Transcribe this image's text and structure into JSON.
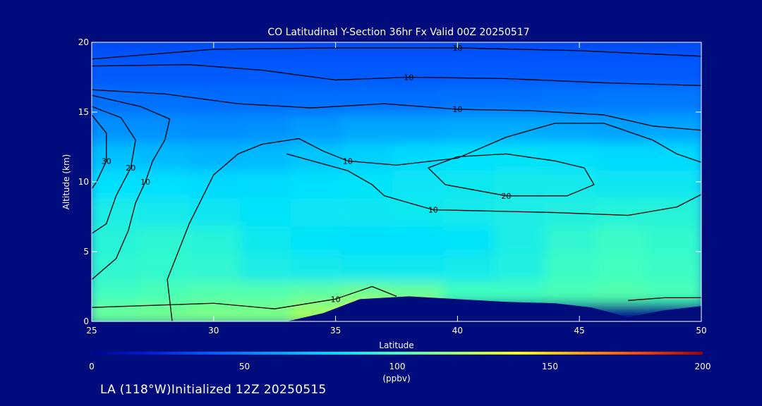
{
  "chart_data": {
    "type": "heatmap",
    "title": "CO Latitudinal Y-Section 36hr  Fx Valid 00Z 20250517",
    "xlabel": "Latitude",
    "ylabel": "Altitude (km)",
    "xlim": [
      25,
      50
    ],
    "ylim": [
      0,
      20
    ],
    "x_ticks": [
      "25",
      "30",
      "35",
      "40",
      "45",
      "50"
    ],
    "y_ticks": [
      "0",
      "5",
      "10",
      "15",
      "20"
    ],
    "colorbar": {
      "range": [
        0,
        200
      ],
      "ticks": [
        "0",
        "50",
        "100",
        "150",
        "200"
      ],
      "unit": "(ppbv)",
      "colors": [
        "#000090",
        "#0020e0",
        "#0060ff",
        "#00a0ff",
        "#00e0ff",
        "#40ffc0",
        "#a0ff60",
        "#ffff00",
        "#ffa000",
        "#ff4000",
        "#a00000"
      ]
    },
    "heat_rows": [
      {
        "alt": 19.5,
        "values": [
          35,
          35,
          35,
          35,
          35,
          35,
          35,
          35,
          35,
          35,
          35,
          35
        ]
      },
      {
        "alt": 17.5,
        "values": [
          38,
          38,
          38,
          38,
          38,
          38,
          38,
          38,
          38,
          38,
          38,
          38
        ]
      },
      {
        "alt": 15.5,
        "values": [
          45,
          45,
          44,
          44,
          45,
          45,
          45,
          46,
          46,
          47,
          48,
          48
        ]
      },
      {
        "alt": 13.5,
        "values": [
          55,
          55,
          54,
          55,
          58,
          62,
          62,
          63,
          63,
          62,
          60,
          62
        ]
      },
      {
        "alt": 11.5,
        "values": [
          70,
          68,
          66,
          68,
          72,
          75,
          78,
          80,
          82,
          80,
          78,
          78
        ]
      },
      {
        "alt": 9.5,
        "values": [
          80,
          80,
          78,
          78,
          80,
          82,
          83,
          85,
          86,
          86,
          84,
          84
        ]
      },
      {
        "alt": 7.5,
        "values": [
          88,
          86,
          84,
          82,
          83,
          84,
          85,
          86,
          88,
          90,
          92,
          92
        ]
      },
      {
        "alt": 5.5,
        "values": [
          92,
          94,
          92,
          85,
          82,
          80,
          80,
          82,
          88,
          95,
          98,
          96
        ]
      },
      {
        "alt": 3.5,
        "values": [
          95,
          96,
          95,
          88,
          86,
          85,
          85,
          86,
          90,
          98,
          100,
          98
        ]
      },
      {
        "alt": 1.5,
        "values": [
          100,
          102,
          104,
          104,
          106,
          110,
          108,
          100,
          100,
          102,
          104,
          102
        ]
      },
      {
        "alt": 0.5,
        "values": [
          108,
          110,
          112,
          112,
          120,
          130,
          125,
          0,
          0,
          0,
          0,
          0
        ]
      }
    ],
    "terrain": [
      [
        33.0,
        0
      ],
      [
        34.5,
        0.6
      ],
      [
        36.0,
        1.6
      ],
      [
        38.0,
        1.8
      ],
      [
        40.0,
        1.6
      ],
      [
        42.0,
        1.4
      ],
      [
        44.0,
        1.3
      ],
      [
        45.5,
        1.0
      ],
      [
        47.0,
        0.3
      ],
      [
        48.5,
        0.8
      ],
      [
        50.0,
        1.1
      ]
    ],
    "contours": [
      {
        "label": "10",
        "points": [
          [
            25,
            18.8
          ],
          [
            30,
            19.5
          ],
          [
            35,
            19.6
          ],
          [
            40,
            19.6
          ],
          [
            45,
            19.4
          ],
          [
            50,
            19.0
          ]
        ]
      },
      {
        "label": "10",
        "points": [
          [
            25,
            18.3
          ],
          [
            29,
            18.4
          ],
          [
            32,
            18.0
          ],
          [
            35,
            17.3
          ],
          [
            38,
            17.5
          ],
          [
            42,
            17.4
          ],
          [
            46,
            17.1
          ],
          [
            50,
            16.9
          ]
        ]
      },
      {
        "label": "10",
        "points": [
          [
            25,
            16.6
          ],
          [
            28,
            16.3
          ],
          [
            31,
            15.6
          ],
          [
            34,
            15.3
          ],
          [
            37,
            15.6
          ],
          [
            40,
            15.2
          ],
          [
            43,
            15.1
          ],
          [
            46,
            14.8
          ],
          [
            48,
            14.0
          ],
          [
            50,
            13.7
          ]
        ]
      },
      {
        "label": "20",
        "points": [
          [
            44,
            11.5
          ],
          [
            42,
            12.0
          ],
          [
            40,
            11.8
          ],
          [
            38.8,
            11.0
          ],
          [
            39.5,
            9.8
          ],
          [
            42,
            9.0
          ],
          [
            44.5,
            9.0
          ],
          [
            45.6,
            9.8
          ],
          [
            45.2,
            11.0
          ],
          [
            44,
            11.5
          ]
        ]
      },
      {
        "label": "10",
        "points": [
          [
            25,
            16.2
          ],
          [
            27,
            15.4
          ],
          [
            28.2,
            14.5
          ],
          [
            28,
            13.0
          ],
          [
            27.5,
            11.5
          ],
          [
            27.2,
            10.0
          ],
          [
            26.8,
            8.5
          ],
          [
            26.5,
            6.5
          ],
          [
            26.0,
            4.5
          ],
          [
            25,
            3.0
          ]
        ]
      },
      {
        "label": "20",
        "points": [
          [
            25,
            15.4
          ],
          [
            26.2,
            14.6
          ],
          [
            26.8,
            13.0
          ],
          [
            26.6,
            11.0
          ],
          [
            26.0,
            9.0
          ],
          [
            25.6,
            7.0
          ],
          [
            25,
            6.3
          ]
        ]
      },
      {
        "label": "30",
        "points": [
          [
            25,
            14.8
          ],
          [
            25.6,
            13.5
          ],
          [
            25.6,
            11.5
          ],
          [
            25.2,
            10.0
          ],
          [
            25,
            9.5
          ]
        ]
      },
      {
        "label": "10",
        "points": [
          [
            28.3,
            0.0
          ],
          [
            28.1,
            3.0
          ],
          [
            29.0,
            7.0
          ],
          [
            30.0,
            10.5
          ],
          [
            31.0,
            12.0
          ],
          [
            32.0,
            12.7
          ],
          [
            33.5,
            13.1
          ],
          [
            34.5,
            12.2
          ],
          [
            35.5,
            11.5
          ],
          [
            37.5,
            11.2
          ],
          [
            40.0,
            11.7
          ],
          [
            42.0,
            13.2
          ],
          [
            44.0,
            14.2
          ],
          [
            46.0,
            14.2
          ],
          [
            48.0,
            13.0
          ],
          [
            49.0,
            12.0
          ],
          [
            50.0,
            11.4
          ]
        ]
      },
      {
        "label": "10",
        "points": [
          [
            33.0,
            12.0
          ],
          [
            35.5,
            10.8
          ],
          [
            36.5,
            9.8
          ],
          [
            37.0,
            9.0
          ],
          [
            39.0,
            8.0
          ],
          [
            44.0,
            7.8
          ],
          [
            47.0,
            7.6
          ],
          [
            49.0,
            8.2
          ],
          [
            50.0,
            9.1
          ]
        ]
      },
      {
        "label": "10",
        "points": [
          [
            25,
            1.0
          ],
          [
            30,
            1.3
          ],
          [
            32.5,
            0.9
          ],
          [
            35.0,
            1.6
          ],
          [
            36.5,
            2.5
          ],
          [
            37.5,
            1.8
          ]
        ]
      },
      {
        "label": "",
        "points": [
          [
            47.0,
            1.5
          ],
          [
            48.5,
            1.7
          ],
          [
            50,
            1.7
          ]
        ]
      }
    ]
  },
  "footer": {
    "subtitle": "LA (118°W)Initialized 12Z 20250515"
  }
}
